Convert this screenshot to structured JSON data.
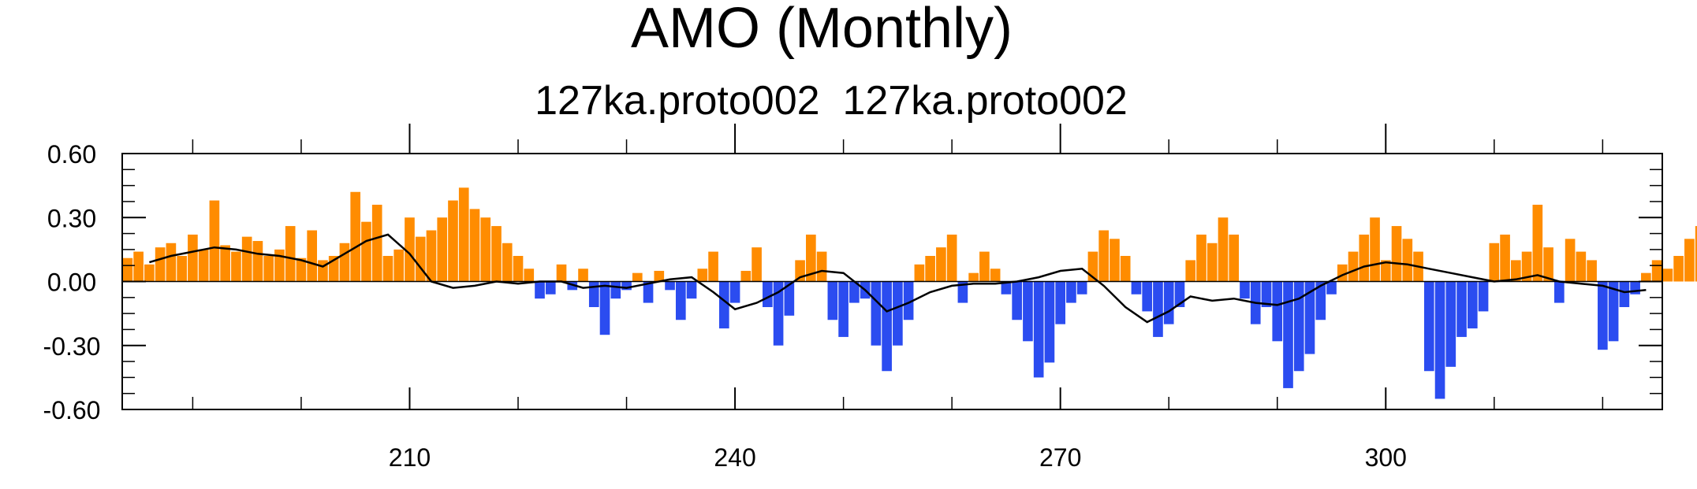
{
  "title": "AMO (Monthly)",
  "subtitle": "127ka.proto002  127ka.proto002",
  "colors": {
    "positive": "#ff8c00",
    "negative": "#2b4cf0",
    "smooth": "#000000"
  },
  "chart_data": {
    "type": "bar",
    "title": "AMO (Monthly)",
    "subtitle": "127ka.proto002  127ka.proto002",
    "xlabel": "",
    "ylabel": "",
    "xlim": [
      183.5,
      325.5
    ],
    "ylim": [
      -0.6,
      0.6
    ],
    "x_ticks": [
      210,
      240,
      270,
      300
    ],
    "x_tick_labels": [
      "210",
      "240",
      "270",
      "300"
    ],
    "y_ticks": [
      0.6,
      0.3,
      0.0,
      -0.3,
      -0.6
    ],
    "y_tick_labels": [
      "0.60",
      "0.30",
      "0.00",
      "-0.30",
      "-0.60"
    ],
    "grid": false,
    "series": [
      {
        "kind": "monthly_bars",
        "x_start": 184.0,
        "x_step": 1,
        "values": [
          0.11,
          0.14,
          0.08,
          0.16,
          0.18,
          0.12,
          0.22,
          0.15,
          0.38,
          0.17,
          0.14,
          0.21,
          0.19,
          0.12,
          0.15,
          0.26,
          0.11,
          0.24,
          0.1,
          0.12,
          0.18,
          0.42,
          0.28,
          0.36,
          0.12,
          0.15,
          0.3,
          0.21,
          0.24,
          0.3,
          0.38,
          0.44,
          0.34,
          0.3,
          0.26,
          0.18,
          0.12,
          0.06,
          -0.08,
          -0.06,
          0.08,
          -0.04,
          0.06,
          -0.12,
          -0.25,
          -0.08,
          -0.04,
          0.04,
          -0.1,
          0.05,
          -0.04,
          -0.18,
          -0.08,
          0.06,
          0.14,
          -0.22,
          -0.1,
          0.05,
          0.16,
          -0.12,
          -0.3,
          -0.16,
          0.1,
          0.22,
          0.14,
          -0.18,
          -0.26,
          -0.1,
          -0.08,
          -0.3,
          -0.42,
          -0.3,
          -0.18,
          0.08,
          0.12,
          0.16,
          0.22,
          -0.1,
          0.04,
          0.14,
          0.06,
          -0.06,
          -0.18,
          -0.28,
          -0.45,
          -0.38,
          -0.2,
          -0.1,
          -0.06,
          0.14,
          0.24,
          0.2,
          0.12,
          -0.06,
          -0.14,
          -0.26,
          -0.2,
          -0.12,
          0.1,
          0.22,
          0.18,
          0.3,
          0.22,
          -0.08,
          -0.2,
          -0.12,
          -0.28,
          -0.5,
          -0.42,
          -0.34,
          -0.18,
          -0.06,
          0.08,
          0.14,
          0.22,
          0.3,
          0.1,
          0.26,
          0.2,
          0.14,
          -0.42,
          -0.55,
          -0.4,
          -0.26,
          -0.22,
          -0.14,
          0.18,
          0.22,
          0.1,
          0.14,
          0.36,
          0.16,
          -0.1,
          0.2,
          0.14,
          0.1,
          -0.32,
          -0.28,
          -0.12,
          -0.06,
          0.04,
          0.1,
          0.06,
          0.12,
          0.2,
          0.26,
          0.16,
          0.1,
          0.02,
          -0.12,
          0.26,
          0.2,
          0.16,
          0.1,
          0.06,
          0.14,
          0.52,
          0.38,
          0.1,
          0.06,
          0.06,
          0.1,
          0.18,
          0.32,
          -0.22,
          -0.16,
          0.14,
          0.2,
          0.16,
          0.1
        ]
      },
      {
        "kind": "smoothed_line",
        "name": "",
        "x": [
          186,
          188,
          190,
          192,
          194,
          196,
          198,
          200,
          202,
          204,
          206,
          208,
          210,
          212,
          214,
          216,
          218,
          220,
          222,
          224,
          226,
          228,
          230,
          232,
          234,
          236,
          238,
          240,
          242,
          244,
          246,
          248,
          250,
          252,
          254,
          256,
          258,
          260,
          262,
          264,
          266,
          268,
          270,
          272,
          274,
          276,
          278,
          280,
          282,
          284,
          286,
          288,
          290,
          292,
          294,
          296,
          298,
          300,
          302,
          304,
          306,
          308,
          310,
          312,
          314,
          316,
          318,
          320,
          322,
          324
        ],
        "y": [
          0.09,
          0.12,
          0.14,
          0.16,
          0.15,
          0.13,
          0.12,
          0.1,
          0.07,
          0.13,
          0.19,
          0.22,
          0.13,
          0.0,
          -0.03,
          -0.02,
          0.0,
          -0.01,
          0.0,
          0.0,
          -0.03,
          -0.02,
          -0.03,
          -0.01,
          0.01,
          0.02,
          -0.05,
          -0.13,
          -0.1,
          -0.05,
          0.02,
          0.05,
          0.04,
          -0.04,
          -0.14,
          -0.1,
          -0.05,
          -0.02,
          -0.01,
          -0.01,
          0.0,
          0.02,
          0.05,
          0.06,
          -0.02,
          -0.12,
          -0.19,
          -0.14,
          -0.07,
          -0.09,
          -0.08,
          -0.1,
          -0.11,
          -0.08,
          -0.02,
          0.03,
          0.07,
          0.09,
          0.08,
          0.06,
          0.04,
          0.02,
          0.0,
          0.01,
          0.03,
          0.0,
          -0.01,
          -0.02,
          -0.05,
          -0.04
        ]
      }
    ]
  }
}
